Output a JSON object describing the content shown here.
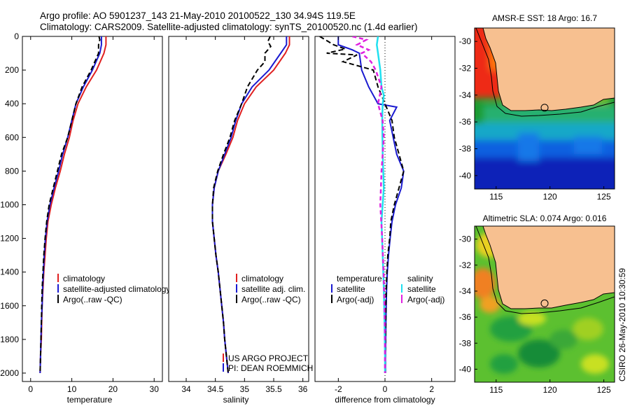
{
  "title_line1": "Argo profile: AO 5901237_143 21-May-2010 20100522_130 34.94S 119.5E",
  "title_line2": "Climatology: CARS2009. Satellite-adjusted climatology: synTS_20100520.nc (1.4d earlier)",
  "side_stamp": "CSIRO 26-May-2010 10:30:59",
  "colors": {
    "climatology": "#e02020",
    "satellite": "#1a1ad0",
    "argo": "#000000",
    "satellite_sal": "#20e0f0",
    "argo_sal": "#e020e0",
    "land": "#f7c090",
    "coast": "#000000"
  },
  "chart_data": [
    {
      "type": "line",
      "panel": "temperature",
      "xlabel": "temperature",
      "xlim": [
        -2,
        32
      ],
      "xticks": [
        "0",
        "10",
        "20",
        "30"
      ],
      "ylim": [
        2050,
        0
      ],
      "yticks": [
        "0",
        "200",
        "400",
        "600",
        "800",
        "1000",
        "1200",
        "1400",
        "1600",
        "1800",
        "2000"
      ],
      "legend": [
        "climatology",
        "satellite-adjusted climatology",
        "Argo(..raw -QC)"
      ],
      "series": [
        {
          "name": "climatology",
          "points": [
            [
              18.3,
              0
            ],
            [
              18.3,
              50
            ],
            [
              17.8,
              100
            ],
            [
              16,
              200
            ],
            [
              13.5,
              300
            ],
            [
              11.5,
              400
            ],
            [
              10.3,
              500
            ],
            [
              9.4,
              600
            ],
            [
              8.2,
              700
            ],
            [
              7.2,
              800
            ],
            [
              6,
              900
            ],
            [
              5,
              1000
            ],
            [
              4.2,
              1100
            ],
            [
              3.8,
              1200
            ],
            [
              3.5,
              1300
            ],
            [
              3.2,
              1400
            ],
            [
              3.0,
              1500
            ],
            [
              2.8,
              1600
            ],
            [
              2.7,
              1700
            ],
            [
              2.6,
              1800
            ],
            [
              2.4,
              1900
            ],
            [
              2.3,
              2000
            ]
          ]
        },
        {
          "name": "satellite-adjusted climatology",
          "points": [
            [
              17.2,
              0
            ],
            [
              17.2,
              50
            ],
            [
              16.8,
              100
            ],
            [
              15,
              200
            ],
            [
              12.8,
              300
            ],
            [
              11,
              400
            ],
            [
              10,
              500
            ],
            [
              9,
              600
            ],
            [
              7.8,
              700
            ],
            [
              6.8,
              800
            ],
            [
              5.7,
              900
            ],
            [
              4.7,
              1000
            ],
            [
              4,
              1100
            ],
            [
              3.6,
              1200
            ],
            [
              3.3,
              1300
            ],
            [
              3.1,
              1400
            ],
            [
              2.9,
              1500
            ],
            [
              2.8,
              1600
            ],
            [
              2.6,
              1700
            ],
            [
              2.5,
              1800
            ],
            [
              2.4,
              1900
            ],
            [
              2.3,
              2000
            ]
          ]
        },
        {
          "name": "Argo(..raw -QC)",
          "points": [
            [
              16.6,
              0
            ],
            [
              16.8,
              20
            ],
            [
              16.5,
              50
            ],
            [
              16.5,
              100
            ],
            [
              14.7,
              200
            ],
            [
              12.5,
              300
            ],
            [
              11,
              400
            ],
            [
              10,
              500
            ],
            [
              9,
              600
            ],
            [
              7.5,
              700
            ],
            [
              6.5,
              800
            ],
            [
              5.5,
              900
            ],
            [
              4.5,
              1000
            ],
            [
              3.9,
              1100
            ],
            [
              3.5,
              1200
            ],
            [
              3.2,
              1300
            ],
            [
              3.0,
              1400
            ],
            [
              2.8,
              1500
            ],
            [
              2.7,
              1600
            ],
            [
              2.6,
              1700
            ],
            [
              2.5,
              1800
            ],
            [
              2.4,
              1900
            ],
            [
              2.3,
              2000
            ]
          ]
        }
      ]
    },
    {
      "type": "line",
      "panel": "salinity",
      "xlabel": "salinity",
      "xlim": [
        33.7,
        36.1
      ],
      "xticks": [
        "34",
        "34.5",
        "35",
        "35.5",
        "36"
      ],
      "ylim": [
        2050,
        0
      ],
      "legend": [
        "climatology",
        "satellite adj. clim.",
        "Argo(..raw -QC)"
      ],
      "annotation": [
        "US ARGO PROJECT",
        "PI: DEAN ROEMMICH"
      ],
      "series": [
        {
          "name": "climatology",
          "points": [
            [
              35.77,
              0
            ],
            [
              35.77,
              50
            ],
            [
              35.7,
              100
            ],
            [
              35.5,
              200
            ],
            [
              35.2,
              300
            ],
            [
              35.0,
              400
            ],
            [
              34.88,
              500
            ],
            [
              34.8,
              600
            ],
            [
              34.68,
              700
            ],
            [
              34.55,
              800
            ],
            [
              34.48,
              900
            ],
            [
              34.45,
              1000
            ],
            [
              34.45,
              1100
            ],
            [
              34.48,
              1200
            ],
            [
              34.51,
              1300
            ],
            [
              34.55,
              1400
            ],
            [
              34.58,
              1500
            ],
            [
              34.61,
              1600
            ],
            [
              34.64,
              1700
            ],
            [
              34.66,
              1800
            ],
            [
              34.69,
              1900
            ],
            [
              34.72,
              2000
            ]
          ]
        },
        {
          "name": "satellite adj. clim.",
          "points": [
            [
              35.72,
              0
            ],
            [
              35.72,
              50
            ],
            [
              35.62,
              100
            ],
            [
              35.42,
              200
            ],
            [
              35.13,
              300
            ],
            [
              34.95,
              400
            ],
            [
              34.85,
              500
            ],
            [
              34.77,
              600
            ],
            [
              34.66,
              700
            ],
            [
              34.55,
              800
            ],
            [
              34.48,
              900
            ],
            [
              34.45,
              1000
            ],
            [
              34.45,
              1100
            ],
            [
              34.48,
              1200
            ],
            [
              34.51,
              1300
            ],
            [
              34.55,
              1400
            ],
            [
              34.58,
              1500
            ],
            [
              34.61,
              1600
            ],
            [
              34.64,
              1700
            ],
            [
              34.66,
              1800
            ],
            [
              34.69,
              1900
            ],
            [
              34.72,
              2000
            ]
          ]
        },
        {
          "name": "Argo(..raw -QC)",
          "points": [
            [
              35.44,
              0
            ],
            [
              35.4,
              30
            ],
            [
              35.45,
              60
            ],
            [
              35.35,
              100
            ],
            [
              35.35,
              150
            ],
            [
              35.22,
              200
            ],
            [
              35.05,
              300
            ],
            [
              34.95,
              400
            ],
            [
              34.83,
              500
            ],
            [
              34.75,
              600
            ],
            [
              34.64,
              700
            ],
            [
              34.54,
              800
            ],
            [
              34.47,
              900
            ],
            [
              34.45,
              1000
            ],
            [
              34.45,
              1100
            ],
            [
              34.48,
              1200
            ],
            [
              34.51,
              1300
            ],
            [
              34.55,
              1400
            ],
            [
              34.58,
              1500
            ],
            [
              34.61,
              1600
            ],
            [
              34.64,
              1700
            ],
            [
              34.66,
              1800
            ],
            [
              34.69,
              1900
            ],
            [
              34.72,
              2000
            ]
          ]
        }
      ]
    },
    {
      "type": "line",
      "panel": "difference",
      "xlabel": "difference from climatology",
      "xlim": [
        -3,
        3
      ],
      "xticks": [
        "-2",
        "0",
        "2"
      ],
      "ylim": [
        2050,
        0
      ],
      "legend_temperature_title": "temperature",
      "legend_salinity_title": "salinity",
      "legend_temperature": [
        "satellite",
        "Argo(-adj)"
      ],
      "legend_salinity": [
        "satellite",
        "Argo(-adj)"
      ],
      "series": [
        {
          "name": "temperature satellite",
          "points": [
            [
              -2,
              0
            ],
            [
              -2,
              50
            ],
            [
              -1.4,
              80
            ],
            [
              -1.1,
              100
            ],
            [
              -1,
              200
            ],
            [
              -0.7,
              300
            ],
            [
              -0.3,
              400
            ],
            [
              0.5,
              420
            ],
            [
              0.2,
              500
            ],
            [
              0.35,
              600
            ],
            [
              0.5,
              700
            ],
            [
              0.8,
              800
            ],
            [
              0.7,
              900
            ],
            [
              0.45,
              1000
            ],
            [
              0.3,
              1100
            ],
            [
              0.22,
              1200
            ],
            [
              0.15,
              1300
            ],
            [
              0.1,
              1400
            ],
            [
              0.07,
              1500
            ],
            [
              0.05,
              1600
            ],
            [
              0.04,
              1700
            ],
            [
              0.03,
              1800
            ],
            [
              0.02,
              1900
            ],
            [
              0.02,
              2000
            ]
          ]
        },
        {
          "name": "temperature Argo(-adj)",
          "points": [
            [
              -2.8,
              0
            ],
            [
              -2.2,
              50
            ],
            [
              -1.7,
              75
            ],
            [
              -2.5,
              100
            ],
            [
              -1.2,
              110
            ],
            [
              -1.8,
              150
            ],
            [
              -0.5,
              200
            ],
            [
              -0.3,
              300
            ],
            [
              0,
              400
            ],
            [
              0.3,
              500
            ],
            [
              0.4,
              600
            ],
            [
              0.6,
              700
            ],
            [
              0.8,
              800
            ],
            [
              0.6,
              900
            ],
            [
              0.4,
              1000
            ],
            [
              0.25,
              1100
            ],
            [
              0.2,
              1200
            ],
            [
              0.12,
              1300
            ],
            [
              0.08,
              1400
            ],
            [
              0.05,
              1500
            ],
            [
              0.04,
              1600
            ],
            [
              0.03,
              1700
            ],
            [
              0.02,
              1800
            ],
            [
              0.01,
              1900
            ],
            [
              0.01,
              2000
            ]
          ]
        },
        {
          "name": "salinity satellite",
          "points": [
            [
              -0.3,
              0
            ],
            [
              -0.35,
              50
            ],
            [
              -0.3,
              100
            ],
            [
              -0.2,
              200
            ],
            [
              -0.15,
              300
            ],
            [
              -0.05,
              350
            ],
            [
              -0.1,
              400
            ],
            [
              -0.12,
              500
            ],
            [
              -0.1,
              700
            ],
            [
              -0.05,
              900
            ],
            [
              -0.15,
              1100
            ],
            [
              -0.1,
              1300
            ],
            [
              -0.05,
              1500
            ],
            [
              -0.02,
              1700
            ],
            [
              0,
              1900
            ],
            [
              0,
              2000
            ]
          ]
        },
        {
          "name": "salinity Argo(-adj)",
          "points": [
            [
              -1.4,
              0
            ],
            [
              -0.8,
              20
            ],
            [
              -1.2,
              50
            ],
            [
              -0.7,
              80
            ],
            [
              -1,
              100
            ],
            [
              -0.6,
              150
            ],
            [
              -0.4,
              200
            ],
            [
              -0.15,
              300
            ],
            [
              -0.3,
              400
            ],
            [
              -0.2,
              450
            ],
            [
              -0.1,
              500
            ],
            [
              -0.05,
              600
            ],
            [
              -0.1,
              700
            ],
            [
              -0.15,
              800
            ],
            [
              -0.2,
              1000
            ],
            [
              -0.12,
              1200
            ],
            [
              -0.06,
              1400
            ],
            [
              -0.02,
              1600
            ],
            [
              0,
              1800
            ],
            [
              0,
              2000
            ]
          ]
        }
      ]
    },
    {
      "type": "heatmap",
      "panel": "sst_map",
      "title": "AMSR-E SST: 18 Argo: 16.7",
      "xlim": [
        113,
        126
      ],
      "ylim": [
        -41,
        -29
      ],
      "xticks": [
        "115",
        "120",
        "125"
      ],
      "yticks": [
        "-30",
        "-32",
        "-34",
        "-36",
        "-38",
        "-40"
      ],
      "profile_location": [
        119.5,
        -34.94
      ]
    },
    {
      "type": "heatmap",
      "panel": "sla_map",
      "title": "Altimetric SLA: 0.074 Argo: 0.016",
      "xlim": [
        113,
        126
      ],
      "ylim": [
        -41,
        -29
      ],
      "xticks": [
        "115",
        "120",
        "125"
      ],
      "yticks": [
        "-30",
        "-32",
        "-34",
        "-36",
        "-38",
        "-40"
      ],
      "profile_location": [
        119.5,
        -34.94
      ]
    }
  ]
}
